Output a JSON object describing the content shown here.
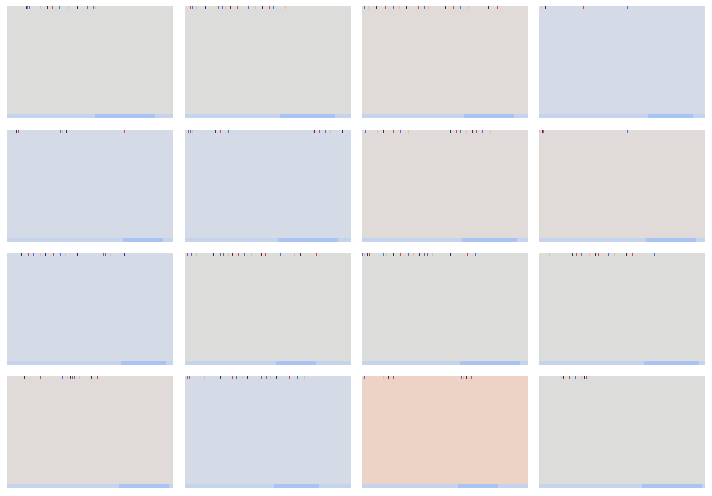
{
  "palette": {
    "neutral": "#dcdcda",
    "warm": "#e0dbd8",
    "cool": "#d4dbe6",
    "peach": "#ecd3c6",
    "strip_base": "#c5d3ec",
    "strip_accent": "#a9c3f2",
    "tick_dark": "#3a2a66",
    "tick_red": "#c0504d",
    "tick_blue": "#4a6fd8",
    "tick_pale": "#e6b9a8"
  },
  "tiles": [
    {
      "tone": "neutral",
      "ticks": [
        19,
        20,
        22,
        33,
        40,
        45,
        52,
        61,
        70,
        80,
        86,
        88
      ]
    },
    {
      "tone": "neutral",
      "ticks": [
        5,
        7,
        11,
        20,
        33,
        37,
        40,
        45,
        52,
        63,
        70,
        77,
        84,
        88,
        100
      ]
    },
    {
      "tone": "warm",
      "ticks": [
        2,
        6,
        14,
        23,
        31,
        37,
        44,
        56,
        62,
        66,
        83,
        91,
        98,
        106,
        126,
        135
      ]
    },
    {
      "tone": "cool",
      "ticks": [
        2,
        6,
        44,
        88
      ]
    },
    {
      "tone": "cool",
      "ticks": [
        9,
        11,
        53,
        55,
        59,
        117
      ]
    },
    {
      "tone": "cool",
      "ticks": [
        3,
        5,
        7,
        30,
        35,
        43,
        128,
        129,
        134,
        140,
        145,
        157
      ]
    },
    {
      "tone": "warm",
      "ticks": [
        3,
        15,
        21,
        31,
        38,
        46,
        88,
        94,
        98,
        104,
        110,
        114,
        120,
        128
      ]
    },
    {
      "tone": "warm",
      "ticks": [
        0,
        3,
        4,
        88
      ]
    },
    {
      "tone": "cool",
      "ticks": [
        14,
        21,
        26,
        33,
        38,
        46,
        53,
        58,
        70,
        96,
        98,
        103,
        117
      ]
    },
    {
      "tone": "neutral",
      "ticks": [
        2,
        6,
        11,
        28,
        35,
        38,
        43,
        47,
        53,
        59,
        66,
        76,
        80,
        95,
        109,
        115,
        131
      ]
    },
    {
      "tone": "neutral",
      "ticks": [
        0,
        2,
        5,
        7,
        21,
        24,
        31,
        38,
        46,
        51,
        57,
        62,
        65,
        70,
        88,
        105,
        113
      ]
    },
    {
      "tone": "neutral",
      "ticks": [
        10,
        33,
        37,
        42,
        50,
        56,
        59,
        69,
        75,
        87,
        93,
        115
      ]
    },
    {
      "tone": "warm",
      "ticks": [
        17,
        33,
        55,
        60,
        63,
        65,
        67,
        72,
        84,
        90
      ]
    },
    {
      "tone": "cool",
      "ticks": [
        2,
        4,
        19,
        35,
        47,
        51,
        57,
        62,
        76,
        81,
        85,
        91,
        104,
        112,
        119
      ]
    },
    {
      "tone": "peach",
      "ticks": [
        2,
        21,
        26,
        31,
        99,
        101,
        104,
        109
      ]
    },
    {
      "tone": "neutral",
      "ticks": [
        22,
        24,
        30,
        36,
        42,
        45,
        47
      ]
    }
  ]
}
